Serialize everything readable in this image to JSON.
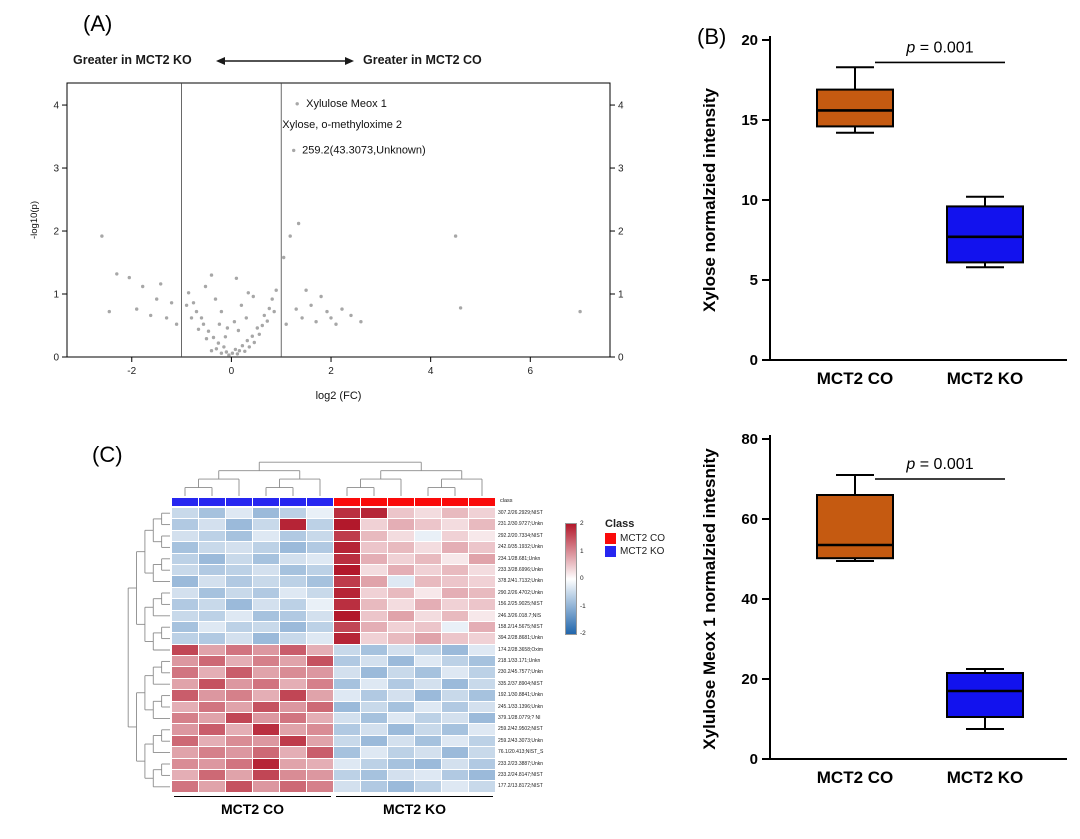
{
  "figure": {
    "panel_a_label": "(A)",
    "panel_b_label": "(B)",
    "panel_c_label": "(C)"
  },
  "chart_data": [
    {
      "id": "volcano",
      "type": "scatter",
      "header_left": "Greater in MCT2 KO",
      "header_right": "Greater in MCT2 CO",
      "xlabel": "log2 (FC)",
      "ylabel": "-log10(p)",
      "xlim": [
        -3.3,
        7.6
      ],
      "ylim": [
        0,
        4.35
      ],
      "xticks": [
        -2,
        0,
        2,
        4,
        6
      ],
      "yticks": [
        0,
        1,
        2,
        3,
        4
      ],
      "vlines": [
        -1,
        1
      ],
      "point_color": "#8a8a8a",
      "points": [
        [
          -0.05,
          0.03
        ],
        [
          0.02,
          0.06
        ],
        [
          0.08,
          0.12
        ],
        [
          -0.1,
          0.08
        ],
        [
          0.12,
          0.05
        ],
        [
          -0.15,
          0.16
        ],
        [
          0.16,
          0.1
        ],
        [
          -0.2,
          0.06
        ],
        [
          0.22,
          0.18
        ],
        [
          -0.26,
          0.22
        ],
        [
          0.27,
          0.09
        ],
        [
          -0.3,
          0.13
        ],
        [
          0.32,
          0.26
        ],
        [
          -0.36,
          0.31
        ],
        [
          0.36,
          0.16
        ],
        [
          -0.4,
          0.1
        ],
        [
          0.42,
          0.33
        ],
        [
          -0.46,
          0.41
        ],
        [
          0.46,
          0.23
        ],
        [
          -0.5,
          0.29
        ],
        [
          0.52,
          0.46
        ],
        [
          -0.56,
          0.52
        ],
        [
          0.56,
          0.36
        ],
        [
          -0.6,
          0.62
        ],
        [
          0.62,
          0.5
        ],
        [
          -0.66,
          0.44
        ],
        [
          0.66,
          0.66
        ],
        [
          -0.7,
          0.72
        ],
        [
          0.72,
          0.57
        ],
        [
          -0.76,
          0.86
        ],
        [
          0.76,
          0.77
        ],
        [
          -0.8,
          0.62
        ],
        [
          0.82,
          0.92
        ],
        [
          -0.86,
          1.02
        ],
        [
          0.86,
          0.72
        ],
        [
          -0.9,
          0.82
        ],
        [
          0.9,
          1.06
        ],
        [
          -0.12,
          0.32
        ],
        [
          0.14,
          0.42
        ],
        [
          -0.24,
          0.52
        ],
        [
          0.3,
          0.62
        ],
        [
          -0.2,
          0.72
        ],
        [
          0.06,
          0.56
        ],
        [
          -0.08,
          0.46
        ],
        [
          0.2,
          0.82
        ],
        [
          -0.32,
          0.92
        ],
        [
          0.34,
          1.02
        ],
        [
          -0.52,
          1.12
        ],
        [
          0.44,
          0.96
        ],
        [
          0.1,
          1.25
        ],
        [
          -0.4,
          1.3
        ],
        [
          -2.6,
          1.92
        ],
        [
          -2.45,
          0.72
        ],
        [
          -2.3,
          1.32
        ],
        [
          -2.05,
          1.26
        ],
        [
          -1.9,
          0.76
        ],
        [
          -1.78,
          1.12
        ],
        [
          -1.62,
          0.66
        ],
        [
          -1.5,
          0.92
        ],
        [
          -1.42,
          1.16
        ],
        [
          -1.3,
          0.62
        ],
        [
          -1.2,
          0.86
        ],
        [
          -1.1,
          0.52
        ],
        [
          1.05,
          1.58
        ],
        [
          1.1,
          0.52
        ],
        [
          1.18,
          1.92
        ],
        [
          1.3,
          0.76
        ],
        [
          1.35,
          2.12
        ],
        [
          1.42,
          0.62
        ],
        [
          1.5,
          1.06
        ],
        [
          1.6,
          0.82
        ],
        [
          1.7,
          0.56
        ],
        [
          1.8,
          0.96
        ],
        [
          1.92,
          0.72
        ],
        [
          2.0,
          0.62
        ],
        [
          2.1,
          0.52
        ],
        [
          2.22,
          0.76
        ],
        [
          2.4,
          0.66
        ],
        [
          2.6,
          0.56
        ],
        [
          4.5,
          1.92
        ],
        [
          4.6,
          0.78
        ],
        [
          7.0,
          0.72
        ],
        [
          1.25,
          3.28
        ],
        [
          1.32,
          4.02
        ]
      ],
      "annotations": [
        {
          "text": "Xylulose Meox 1",
          "x": 1.5,
          "y": 4.02
        },
        {
          "text": "Xylose, o-methyloxime 2",
          "x": 1.02,
          "y": 3.68
        },
        {
          "text": "259.2(43.3073,Unknown)",
          "x": 1.42,
          "y": 3.28
        }
      ]
    },
    {
      "id": "box-xylose",
      "type": "box",
      "ylabel": "Xylose normalzied intensity",
      "ylim": [
        0,
        20
      ],
      "yticks": [
        0,
        5,
        10,
        15,
        20
      ],
      "p_label_italic": "p",
      "p_label_rest": " = 0.001",
      "p_line_y": 18.6,
      "groups": [
        {
          "label": "MCT2 CO",
          "color": "#C55A11",
          "min": 14.2,
          "q1": 14.6,
          "median": 15.6,
          "q3": 16.9,
          "max": 18.3
        },
        {
          "label": "MCT2 KO",
          "color": "#1212EE",
          "min": 5.8,
          "q1": 6.1,
          "median": 7.7,
          "q3": 9.6,
          "max": 10.2
        }
      ]
    },
    {
      "id": "box-xylulose",
      "type": "box",
      "ylabel": "Xylulose Meox 1 normalzied intesnity",
      "ylim": [
        0,
        80
      ],
      "yticks": [
        0,
        20,
        40,
        60,
        80
      ],
      "p_label_italic": "p",
      "p_label_rest": " = 0.001",
      "p_line_y": 70,
      "groups": [
        {
          "label": "MCT2 CO",
          "color": "#C55A11",
          "min": 49.5,
          "q1": 50.2,
          "median": 53.5,
          "q3": 66,
          "max": 71
        },
        {
          "label": "MCT2 KO",
          "color": "#1212EE",
          "min": 7.5,
          "q1": 10.5,
          "median": 17,
          "q3": 21.5,
          "max": 22.5
        }
      ]
    },
    {
      "id": "heatmap",
      "type": "heatmap",
      "value_range": [
        -2,
        2
      ],
      "colorbar_ticks": [
        "2",
        "1",
        "0",
        "-1",
        "-2"
      ],
      "class_bar_label": "class",
      "classbar_colors": [
        "#2626F0",
        "#2626F0",
        "#2626F0",
        "#2626F0",
        "#2626F0",
        "#2626F0",
        "#FA0A0A",
        "#FA0A0A",
        "#FA0A0A",
        "#FA0A0A",
        "#FA0A0A",
        "#FA0A0A"
      ],
      "legend": {
        "title": "Class",
        "items": [
          {
            "label": "MCT2 CO",
            "color": "#FA0A0A"
          },
          {
            "label": "MCT2 KO",
            "color": "#2626F0"
          }
        ]
      },
      "bottom_groups": [
        {
          "label": "MCT2 CO"
        },
        {
          "label": "MCT2 KO"
        }
      ],
      "rows": [
        "307.2/26.2929;NIST",
        "231.2/30.9727;Unkn",
        "292.2/20.7334;NIST",
        "242.0/35.1932;Unkn",
        "234.1/28.681;Unkn",
        "233.3/28.6996;Unkn",
        "378.2/41.7132;Unkn",
        "290.2/26.4702;Unkn",
        "156.2/25.9025;NIST",
        "246.3/26.018.7;NIS",
        "158.2/14.5675;NIST",
        "394.2/28.8681;Unkn",
        "174.2/28.3658;Oxim",
        "218.1/33.171;Unkn",
        "230.2/45.7577;Unkn",
        "335.2/37.8904;NIST",
        "192.1/30.8841;Unkn",
        "245.1/33.1396;Unkn",
        "379.1/28.0779;? NI",
        "259.2/42.9502;NIST",
        "259.2/43.3073;Unkn",
        "76.1/20.413;NIST_S",
        "233.2/23.3887;Unkn",
        "233.2/24.8147;NIST",
        "177.2/13.8172;NIST"
      ],
      "values": [
        [
          -0.5,
          -0.8,
          -0.3,
          -0.9,
          -0.6,
          -0.2,
          1.8,
          1.9,
          0.5,
          0.3,
          0.6,
          0.4
        ],
        [
          -0.7,
          -0.4,
          -0.9,
          -0.5,
          1.9,
          -0.6,
          2.0,
          0.4,
          0.7,
          0.5,
          0.3,
          0.6
        ],
        [
          -0.4,
          -0.6,
          -0.8,
          -0.3,
          -0.7,
          -0.5,
          1.7,
          0.6,
          0.3,
          -0.2,
          0.4,
          0.2
        ],
        [
          -0.8,
          -0.5,
          -0.4,
          -0.6,
          -0.9,
          -0.7,
          1.9,
          0.5,
          0.6,
          0.3,
          0.7,
          0.5
        ],
        [
          -0.6,
          -0.9,
          -0.5,
          -0.8,
          -0.4,
          -0.3,
          1.8,
          0.7,
          0.4,
          0.6,
          0.2,
          0.8
        ],
        [
          -0.5,
          -0.7,
          -0.6,
          -0.4,
          -0.8,
          -0.6,
          2.0,
          0.3,
          0.7,
          0.4,
          0.6,
          0.3
        ],
        [
          -0.9,
          -0.4,
          -0.7,
          -0.5,
          -0.6,
          -0.8,
          1.7,
          0.8,
          -0.3,
          0.6,
          0.5,
          0.4
        ],
        [
          -0.4,
          -0.8,
          -0.5,
          -0.7,
          -0.3,
          -0.5,
          1.9,
          0.4,
          0.6,
          0.2,
          0.7,
          0.6
        ],
        [
          -0.7,
          -0.5,
          -0.9,
          -0.4,
          -0.6,
          -0.2,
          1.8,
          0.6,
          0.3,
          0.7,
          0.4,
          0.5
        ],
        [
          -0.5,
          -0.6,
          -0.3,
          -0.8,
          -0.7,
          -0.4,
          2.0,
          0.5,
          0.8,
          0.3,
          0.6,
          0.2
        ],
        [
          -0.8,
          -0.3,
          -0.6,
          -0.5,
          -0.9,
          -0.6,
          1.6,
          0.7,
          0.4,
          0.5,
          -0.2,
          0.7
        ],
        [
          -0.6,
          -0.7,
          -0.4,
          -0.9,
          -0.5,
          -0.3,
          1.9,
          0.4,
          0.6,
          0.8,
          0.5,
          0.4
        ],
        [
          1.6,
          0.8,
          1.2,
          0.9,
          1.4,
          0.7,
          -0.5,
          -0.8,
          -0.4,
          -0.6,
          -0.9,
          -0.3
        ],
        [
          0.9,
          1.3,
          0.7,
          1.1,
          0.8,
          1.5,
          -0.7,
          -0.4,
          -0.9,
          -0.3,
          -0.6,
          -0.8
        ],
        [
          1.2,
          0.7,
          1.4,
          0.8,
          1.0,
          0.9,
          -0.4,
          -0.9,
          -0.5,
          -0.8,
          -0.3,
          -0.6
        ],
        [
          0.8,
          1.5,
          0.9,
          1.2,
          0.7,
          1.1,
          -0.8,
          -0.3,
          -0.7,
          -0.4,
          -0.9,
          -0.5
        ],
        [
          1.4,
          0.9,
          1.1,
          0.7,
          1.6,
          0.8,
          -0.3,
          -0.7,
          -0.4,
          -0.9,
          -0.5,
          -0.8
        ],
        [
          0.7,
          1.2,
          0.8,
          1.5,
          0.9,
          1.3,
          -0.9,
          -0.5,
          -0.8,
          -0.3,
          -0.7,
          -0.4
        ],
        [
          1.1,
          0.8,
          1.6,
          0.9,
          1.2,
          0.7,
          -0.4,
          -0.8,
          -0.3,
          -0.6,
          -0.4,
          -0.9
        ],
        [
          0.9,
          1.4,
          0.7,
          1.8,
          0.8,
          1.0,
          -0.7,
          -0.4,
          -0.9,
          -0.5,
          -0.8,
          -0.3
        ],
        [
          1.3,
          0.7,
          1.0,
          0.9,
          1.7,
          0.8,
          -0.5,
          -0.9,
          -0.4,
          -0.8,
          -0.3,
          -0.6
        ],
        [
          0.8,
          1.1,
          0.9,
          1.3,
          0.7,
          1.4,
          -0.8,
          -0.3,
          -0.6,
          -0.4,
          -0.9,
          -0.5
        ],
        [
          1.0,
          0.9,
          1.2,
          1.9,
          0.8,
          0.7,
          -0.3,
          -0.6,
          -0.8,
          -0.9,
          -0.4,
          -0.7
        ],
        [
          0.7,
          1.3,
          0.8,
          1.6,
          1.0,
          0.9,
          -0.6,
          -0.8,
          -0.4,
          -0.3,
          -0.7,
          -0.9
        ],
        [
          1.2,
          0.8,
          1.5,
          0.9,
          1.3,
          1.1,
          -0.4,
          -0.7,
          -0.9,
          -0.6,
          -0.3,
          -0.5
        ]
      ]
    }
  ]
}
